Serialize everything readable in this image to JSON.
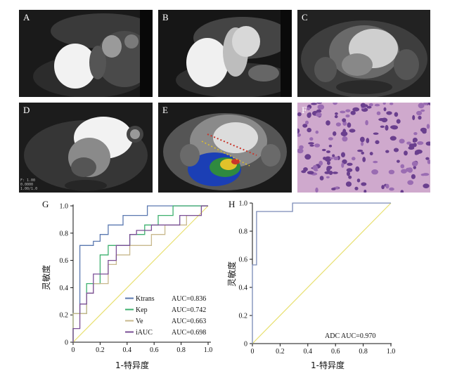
{
  "panels": {
    "A": {
      "label": "A"
    },
    "B": {
      "label": "B"
    },
    "C": {
      "label": "C"
    },
    "D": {
      "label": "D",
      "scan_text": [
        "F: 1.00",
        "0.0000",
        "1.00/1.0"
      ]
    },
    "E": {
      "label": "E"
    },
    "F": {
      "label": "F"
    }
  },
  "chart_data": [
    {
      "type": "line",
      "panel": "G",
      "xlabel": "1-特异度",
      "ylabel": "灵敏度",
      "xlim": [
        0,
        1.0
      ],
      "ylim": [
        0,
        1.0
      ],
      "xticks": [
        "0",
        "0.2",
        "0.4",
        "0.6",
        "0.8",
        "1.0"
      ],
      "yticks": [
        "0",
        "0.2",
        "0.4",
        "0.6",
        "0.8",
        "1.0"
      ],
      "reference_line": true,
      "legend_position": "bottom-right",
      "series": [
        {
          "name": "Ktrans",
          "auc_label": "AUC=0.836",
          "color": "#5a78b0",
          "points": [
            [
              0,
              0
            ],
            [
              0,
              0.21
            ],
            [
              0.05,
              0.21
            ],
            [
              0.05,
              0.71
            ],
            [
              0.15,
              0.71
            ],
            [
              0.15,
              0.74
            ],
            [
              0.2,
              0.74
            ],
            [
              0.2,
              0.79
            ],
            [
              0.26,
              0.79
            ],
            [
              0.26,
              0.86
            ],
            [
              0.37,
              0.86
            ],
            [
              0.37,
              0.93
            ],
            [
              0.55,
              0.93
            ],
            [
              0.55,
              1.0
            ],
            [
              1.0,
              1.0
            ]
          ]
        },
        {
          "name": "Kep",
          "auc_label": "AUC=0.742",
          "color": "#3db06e",
          "points": [
            [
              0,
              0
            ],
            [
              0,
              0.21
            ],
            [
              0.1,
              0.21
            ],
            [
              0.1,
              0.43
            ],
            [
              0.2,
              0.43
            ],
            [
              0.2,
              0.64
            ],
            [
              0.26,
              0.64
            ],
            [
              0.26,
              0.71
            ],
            [
              0.42,
              0.71
            ],
            [
              0.42,
              0.79
            ],
            [
              0.53,
              0.79
            ],
            [
              0.53,
              0.86
            ],
            [
              0.63,
              0.86
            ],
            [
              0.63,
              0.93
            ],
            [
              0.74,
              0.93
            ],
            [
              0.74,
              1.0
            ],
            [
              1.0,
              1.0
            ]
          ]
        },
        {
          "name": "Ve",
          "auc_label": "AUC=0.663",
          "color": "#c8b88c",
          "points": [
            [
              0,
              0
            ],
            [
              0,
              0.21
            ],
            [
              0.1,
              0.21
            ],
            [
              0.1,
              0.36
            ],
            [
              0.15,
              0.36
            ],
            [
              0.15,
              0.43
            ],
            [
              0.26,
              0.43
            ],
            [
              0.26,
              0.57
            ],
            [
              0.32,
              0.57
            ],
            [
              0.32,
              0.64
            ],
            [
              0.42,
              0.64
            ],
            [
              0.42,
              0.71
            ],
            [
              0.58,
              0.71
            ],
            [
              0.58,
              0.79
            ],
            [
              0.68,
              0.79
            ],
            [
              0.68,
              0.86
            ],
            [
              0.84,
              0.86
            ],
            [
              0.84,
              0.93
            ],
            [
              0.95,
              0.93
            ],
            [
              0.95,
              1.0
            ],
            [
              1.0,
              1.0
            ]
          ]
        },
        {
          "name": "iAUC",
          "auc_label": "AUC=0.698",
          "color": "#7a4f96",
          "points": [
            [
              0,
              0
            ],
            [
              0,
              0.1
            ],
            [
              0.05,
              0.1
            ],
            [
              0.05,
              0.28
            ],
            [
              0.1,
              0.28
            ],
            [
              0.1,
              0.36
            ],
            [
              0.15,
              0.36
            ],
            [
              0.15,
              0.5
            ],
            [
              0.26,
              0.5
            ],
            [
              0.26,
              0.6
            ],
            [
              0.32,
              0.6
            ],
            [
              0.32,
              0.71
            ],
            [
              0.42,
              0.71
            ],
            [
              0.42,
              0.79
            ],
            [
              0.47,
              0.79
            ],
            [
              0.47,
              0.82
            ],
            [
              0.58,
              0.82
            ],
            [
              0.58,
              0.86
            ],
            [
              0.79,
              0.86
            ],
            [
              0.79,
              0.93
            ],
            [
              0.95,
              0.93
            ],
            [
              0.95,
              1.0
            ],
            [
              1.0,
              1.0
            ]
          ]
        }
      ]
    },
    {
      "type": "line",
      "panel": "H",
      "xlabel": "1-特异度",
      "ylabel": "灵敏度",
      "xlim": [
        0,
        1.0
      ],
      "ylim": [
        0,
        1.0
      ],
      "xticks": [
        "0",
        "0.2",
        "0.4",
        "0.6",
        "0.8",
        "1.0"
      ],
      "yticks": [
        "0",
        "0.2",
        "0.4",
        "0.6",
        "0.8",
        "1.0"
      ],
      "reference_line": true,
      "series": [
        {
          "name": "ADC",
          "auc_label": "AUC=0.970",
          "color": "#7a8ab6",
          "points": [
            [
              0,
              0
            ],
            [
              0,
              0.56
            ],
            [
              0.03,
              0.56
            ],
            [
              0.03,
              0.94
            ],
            [
              0.29,
              0.94
            ],
            [
              0.29,
              1.0
            ],
            [
              1.0,
              1.0
            ]
          ]
        }
      ]
    }
  ],
  "colors": {
    "reference": "#e8e070",
    "scan_bg": "#111111",
    "histology_bg": "#c9a3c8"
  }
}
